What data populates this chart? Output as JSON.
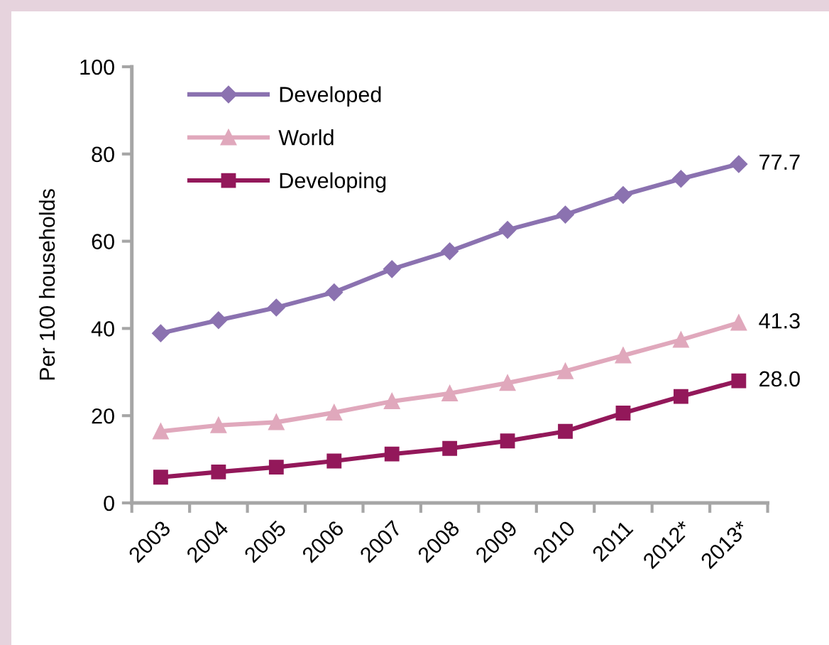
{
  "chart_data": {
    "type": "line",
    "ylabel": "Per 100 households",
    "categories": [
      "2003",
      "2004",
      "2005",
      "2006",
      "2007",
      "2008",
      "2009",
      "2010",
      "2011",
      "2012*",
      "2013*"
    ],
    "series": [
      {
        "name": "Developed",
        "color": "#8b72b0",
        "marker": "diamond",
        "values": [
          38.9,
          41.9,
          44.8,
          48.3,
          53.6,
          57.7,
          62.6,
          66.1,
          70.6,
          74.3,
          77.7
        ],
        "value_labels": [
          null,
          null,
          null,
          null,
          null,
          null,
          null,
          null,
          null,
          null,
          "77.7"
        ]
      },
      {
        "name": "World",
        "color": "#e0a8bc",
        "marker": "triangle",
        "values": [
          16.4,
          17.8,
          18.5,
          20.7,
          23.3,
          25.1,
          27.5,
          30.2,
          33.8,
          37.4,
          41.3
        ],
        "value_labels": [
          null,
          null,
          null,
          null,
          null,
          null,
          null,
          null,
          null,
          null,
          "41.3"
        ]
      },
      {
        "name": "Developing",
        "color": "#93185a",
        "marker": "square",
        "values": [
          5.9,
          7.1,
          8.2,
          9.6,
          11.2,
          12.5,
          14.2,
          16.4,
          20.6,
          24.4,
          28.0
        ],
        "value_labels": [
          null,
          null,
          null,
          null,
          null,
          null,
          null,
          null,
          null,
          null,
          "28.0"
        ]
      }
    ],
    "ylim": [
      0,
      100
    ],
    "yticks": [
      0,
      20,
      40,
      60,
      80,
      100
    ],
    "grid": false,
    "legend": "top left",
    "line_style": "solid"
  }
}
